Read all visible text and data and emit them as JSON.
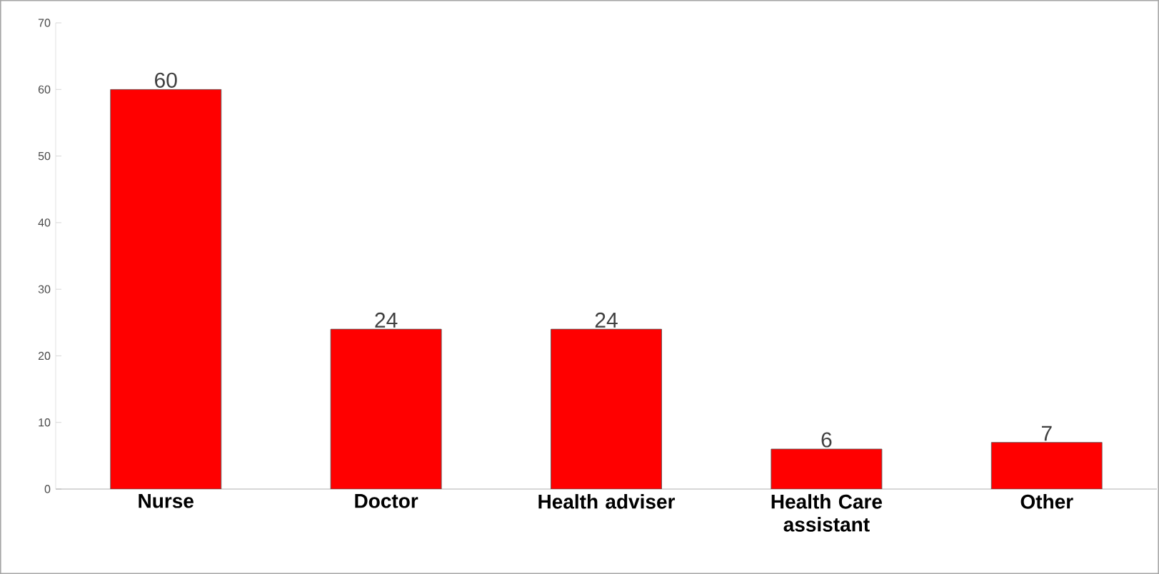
{
  "chart_data": {
    "type": "bar",
    "categories": [
      "Nurse",
      "Doctor",
      "Health adviser",
      "Health Care assistant",
      "Other"
    ],
    "values": [
      60,
      24,
      24,
      6,
      7
    ],
    "color": "#ff0000",
    "ylim": [
      0,
      70
    ],
    "yticks": [
      0,
      10,
      20,
      30,
      40,
      50,
      60,
      70
    ],
    "data_labels": true
  }
}
